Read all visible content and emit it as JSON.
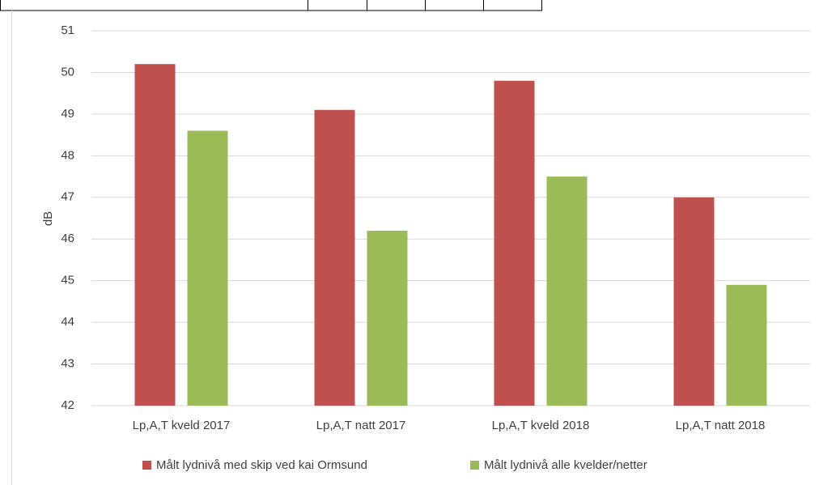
{
  "chart_data": {
    "type": "bar",
    "y_label": "dB",
    "categories": [
      "Lp,A,T kveld 2017",
      "Lp,A,T natt 2017",
      "Lp,A,T kveld 2018",
      "Lp,A,T natt 2018"
    ],
    "series": [
      {
        "name": "Målt lydnivå med skip ved kai Ormsund",
        "color": "#c0504d",
        "values": [
          50.2,
          49.1,
          49.8,
          47.0
        ]
      },
      {
        "name": "Målt lydnivå alle kvelder/netter",
        "color": "#9bbb59",
        "values": [
          48.6,
          46.2,
          47.5,
          44.9
        ]
      }
    ],
    "ylim": [
      42,
      51
    ],
    "yticks": [
      42,
      43,
      44,
      45,
      46,
      47,
      48,
      49,
      50,
      51
    ],
    "grid": true,
    "legend": "bottom"
  }
}
